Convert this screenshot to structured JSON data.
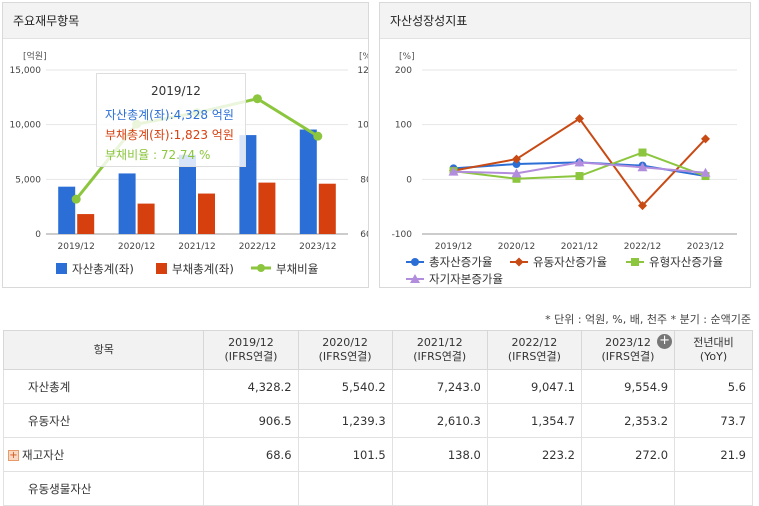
{
  "left_panel": {
    "title": "주요재무항목",
    "left_axis_unit": "[억원]",
    "right_axis_unit": "[%]",
    "tooltip": {
      "period": "2019/12",
      "asset_line": "자산총계(좌):4,328 억원",
      "liab_line": "부채총계(좌):1,823 억원",
      "ratio_line": "부채비율    :   72.74 %"
    },
    "legend": [
      "자산총계(좌)",
      "부채총계(좌)",
      "부채비율"
    ]
  },
  "right_panel": {
    "title": "자산성장성지표",
    "axis_unit": "[%]",
    "legend": [
      "총자산증가율",
      "유동자산증가율",
      "유형자산증가율",
      "자기자본증가율"
    ]
  },
  "chart_data": [
    {
      "type": "bar",
      "title": "주요재무항목",
      "categories": [
        "2019/12",
        "2020/12",
        "2021/12",
        "2022/12",
        "2023/12"
      ],
      "y_ticks": [
        "0",
        "5,000",
        "10,000",
        "15,000"
      ],
      "y2_ticks": [
        "60",
        "80",
        "100",
        "120"
      ],
      "ylim": [
        0,
        15000
      ],
      "y2lim": [
        60,
        120
      ],
      "series": [
        {
          "name": "자산총계(좌)",
          "kind": "bar",
          "color": "#2b6fd6",
          "values": [
            4328,
            5540,
            7243,
            9047,
            9555
          ]
        },
        {
          "name": "부채총계(좌)",
          "kind": "bar",
          "color": "#d6400f",
          "values": [
            1823,
            2780,
            3700,
            4700,
            4600
          ]
        },
        {
          "name": "부채비율",
          "kind": "line",
          "axis": "right",
          "color": "#8cc63f",
          "values": [
            72.74,
            100.2,
            104.4,
            109.5,
            95.8
          ]
        }
      ],
      "legend_position": "bottom"
    },
    {
      "type": "line",
      "title": "자산성장성지표",
      "categories": [
        "2019/12",
        "2020/12",
        "2021/12",
        "2022/12",
        "2023/12"
      ],
      "y_ticks": [
        "-100",
        "0",
        "100",
        "200"
      ],
      "ylim": [
        -100,
        200
      ],
      "series": [
        {
          "name": "총자산증가율",
          "color": "#2b6fd6",
          "marker": "circle",
          "values": [
            20,
            28,
            31,
            25,
            6
          ]
        },
        {
          "name": "유동자산증가율",
          "color": "#c84a14",
          "marker": "diamond",
          "values": [
            16,
            37,
            111,
            -48,
            74
          ]
        },
        {
          "name": "유형자산증가율",
          "color": "#8cc63f",
          "marker": "square",
          "values": [
            15,
            1,
            6,
            49,
            6
          ]
        },
        {
          "name": "자기자본증가율",
          "color": "#b38ddd",
          "marker": "triangle",
          "values": [
            14,
            11,
            31,
            22,
            12
          ]
        }
      ],
      "legend_position": "bottom"
    }
  ],
  "table": {
    "unit_note": "* 단위 : 억원, %, 배, 천주   * 분기 : 순액기준",
    "item_header": "항목",
    "columns": [
      {
        "period": "2019/12",
        "basis": "(IFRS연결)"
      },
      {
        "period": "2020/12",
        "basis": "(IFRS연결)"
      },
      {
        "period": "2021/12",
        "basis": "(IFRS연결)"
      },
      {
        "period": "2022/12",
        "basis": "(IFRS연결)"
      },
      {
        "period": "2023/12",
        "basis": "(IFRS연결)"
      }
    ],
    "yoy_header": {
      "line1": "전년대비",
      "line2": "(YoY)"
    },
    "rows": [
      {
        "label": "자산총계",
        "values": [
          "4,328.2",
          "5,540.2",
          "7,243.0",
          "9,047.1",
          "9,554.9"
        ],
        "yoy": "5.6",
        "expandable": false
      },
      {
        "label": "유동자산",
        "values": [
          "906.5",
          "1,239.3",
          "2,610.3",
          "1,354.7",
          "2,353.2"
        ],
        "yoy": "73.7",
        "expandable": false
      },
      {
        "label": "재고자산",
        "values": [
          "68.6",
          "101.5",
          "138.0",
          "223.2",
          "272.0"
        ],
        "yoy": "21.9",
        "expandable": true
      },
      {
        "label": "유동생물자산",
        "values": [
          "",
          "",
          "",
          "",
          ""
        ],
        "yoy": "",
        "expandable": false
      }
    ]
  }
}
